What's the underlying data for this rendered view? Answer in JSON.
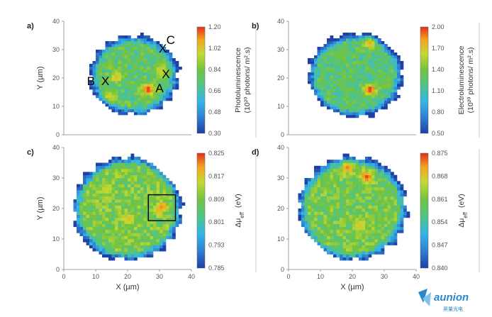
{
  "chart_data": [
    {
      "type": "heatmap",
      "panel": "a)",
      "title": "",
      "xlabel": "",
      "ylabel": "Y (µm)",
      "xlim": [
        0,
        40
      ],
      "ylim": [
        0,
        40
      ],
      "xticks": [],
      "yticks": [
        "40",
        "30",
        "20",
        "10",
        "0"
      ],
      "colorbar": {
        "label": "Photoluminescence",
        "unit": "(10²⁰ photons/ m².s)",
        "range": [
          0.3,
          1.2
        ],
        "ticks": [
          "1.20",
          "1.02",
          "0.84",
          "0.66",
          "0.48",
          "0.30"
        ]
      },
      "disk": {
        "center": [
          22,
          21
        ],
        "radius": 14
      },
      "hotspots": [
        {
          "x": 26,
          "y": 15.5,
          "value": 1.2
        },
        {
          "x": 16,
          "y": 20,
          "value": 1.05
        },
        {
          "x": 30,
          "y": 22,
          "value": 1.0
        },
        {
          "x": 14,
          "y": 13,
          "value": 1.0
        }
      ],
      "annotations": [
        {
          "text": "X",
          "x": 31,
          "y": 29
        },
        {
          "text": "C",
          "x": 33.5,
          "y": 32
        },
        {
          "text": "X",
          "x": 32,
          "y": 20
        },
        {
          "text": "A",
          "x": 30,
          "y": 15
        },
        {
          "text": "B",
          "x": 8.5,
          "y": 17.5
        },
        {
          "text": "X",
          "x": 13,
          "y": 17.5
        }
      ]
    },
    {
      "type": "heatmap",
      "panel": "b)",
      "title": "",
      "xlabel": "",
      "ylabel": "",
      "xlim": [
        0,
        40
      ],
      "ylim": [
        0,
        40
      ],
      "xticks": [],
      "yticks": [
        "40",
        "30",
        "20",
        "10",
        "0"
      ],
      "colorbar": {
        "label": "Electroluminescence",
        "unit": "(10²⁰ photons/ m².s)",
        "range": [
          0.5,
          2.0
        ],
        "ticks": [
          "2.00",
          "1.70",
          "1.40",
          "1.10",
          "0.80",
          "0.50"
        ]
      },
      "disk": {
        "center": [
          21,
          21
        ],
        "radius": 15
      },
      "hotspots": [
        {
          "x": 25,
          "y": 15.5,
          "value": 2.0
        },
        {
          "x": 25,
          "y": 32,
          "value": 1.8
        },
        {
          "x": 16,
          "y": 28,
          "value": 1.4
        }
      ],
      "annotations": []
    },
    {
      "type": "heatmap",
      "panel": "c)",
      "title": "",
      "xlabel": "X (µm)",
      "ylabel": "Y (µm)",
      "xlim": [
        0,
        40
      ],
      "ylim": [
        0,
        40
      ],
      "xticks": [
        "0",
        "10",
        "20",
        "30",
        "40"
      ],
      "yticks": [
        "40",
        "30",
        "20",
        "10",
        "0"
      ],
      "colorbar": {
        "label": "Δμ",
        "subscript": "eff",
        "unit": "(eV)",
        "range": [
          0.785,
          0.825
        ],
        "ticks": [
          "0.825",
          "0.817",
          "0.809",
          "0.801",
          "0.793",
          "0.785"
        ]
      },
      "disk": {
        "center": [
          20,
          20
        ],
        "radius": 17
      },
      "hotspots": [
        {
          "x": 30,
          "y": 20,
          "value": 0.821
        },
        {
          "x": 20,
          "y": 16,
          "value": 0.818
        },
        {
          "x": 13,
          "y": 26,
          "value": 0.816
        }
      ],
      "box": {
        "x0": 26.5,
        "x1": 35,
        "y0": 16,
        "y1": 24.5
      },
      "annotations": []
    },
    {
      "type": "heatmap",
      "panel": "d)",
      "title": "",
      "xlabel": "X (µm)",
      "ylabel": "",
      "xlim": [
        0,
        40
      ],
      "ylim": [
        0,
        40
      ],
      "xticks": [
        "0",
        "10",
        "20",
        "30",
        "40"
      ],
      "yticks": [
        "40",
        "30",
        "20",
        "10",
        "0"
      ],
      "colorbar": {
        "label": "Δμ",
        "subscript": "eff",
        "unit": "(eV)",
        "range": [
          0.84,
          0.875
        ],
        "ticks": [
          "0.875",
          "0.868",
          "0.861",
          "0.854",
          "0.847",
          "0.840"
        ]
      },
      "disk": {
        "center": [
          20,
          20
        ],
        "radius": 17
      },
      "hotspots": [
        {
          "x": 24,
          "y": 30,
          "value": 0.874
        },
        {
          "x": 18,
          "y": 33,
          "value": 0.872
        },
        {
          "x": 22,
          "y": 14,
          "value": 0.868
        }
      ],
      "annotations": []
    }
  ],
  "logo": {
    "name": "aunion",
    "subtitle": "昊量光电",
    "color": "#2a88c9"
  }
}
